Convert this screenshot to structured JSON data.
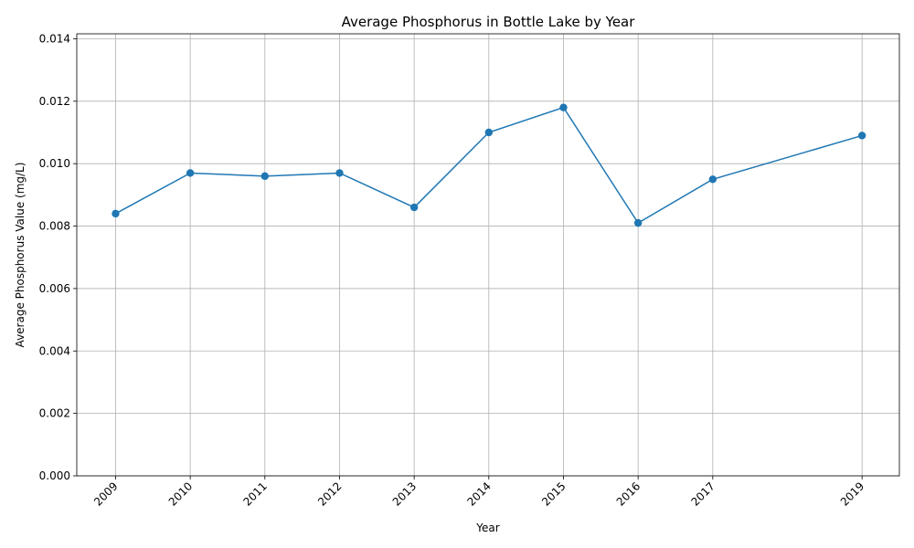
{
  "chart_data": {
    "type": "line",
    "title": "Average Phosphorus in Bottle Lake by Year",
    "xlabel": "Year",
    "ylabel": "Average Phosphorus Value (mg/L)",
    "x": [
      2009,
      2010,
      2011,
      2012,
      2013,
      2014,
      2015,
      2016,
      2017,
      2019
    ],
    "series": [
      {
        "values": [
          0.0084,
          0.0097,
          0.0096,
          0.0097,
          0.0086,
          0.011,
          0.0118,
          0.0081,
          0.0095,
          0.0109
        ]
      }
    ],
    "x_ticks": [
      "2009",
      "2010",
      "2011",
      "2012",
      "2013",
      "2014",
      "2015",
      "2016",
      "2017",
      "2019"
    ],
    "y_ticks": [
      "0.000",
      "0.002",
      "0.004",
      "0.006",
      "0.008",
      "0.010",
      "0.012",
      "0.014"
    ],
    "xlim": [
      2008.48,
      2019.5
    ],
    "ylim": [
      0,
      0.01416
    ],
    "grid": true,
    "line_color": "#1f77b4",
    "marker": "circle"
  }
}
